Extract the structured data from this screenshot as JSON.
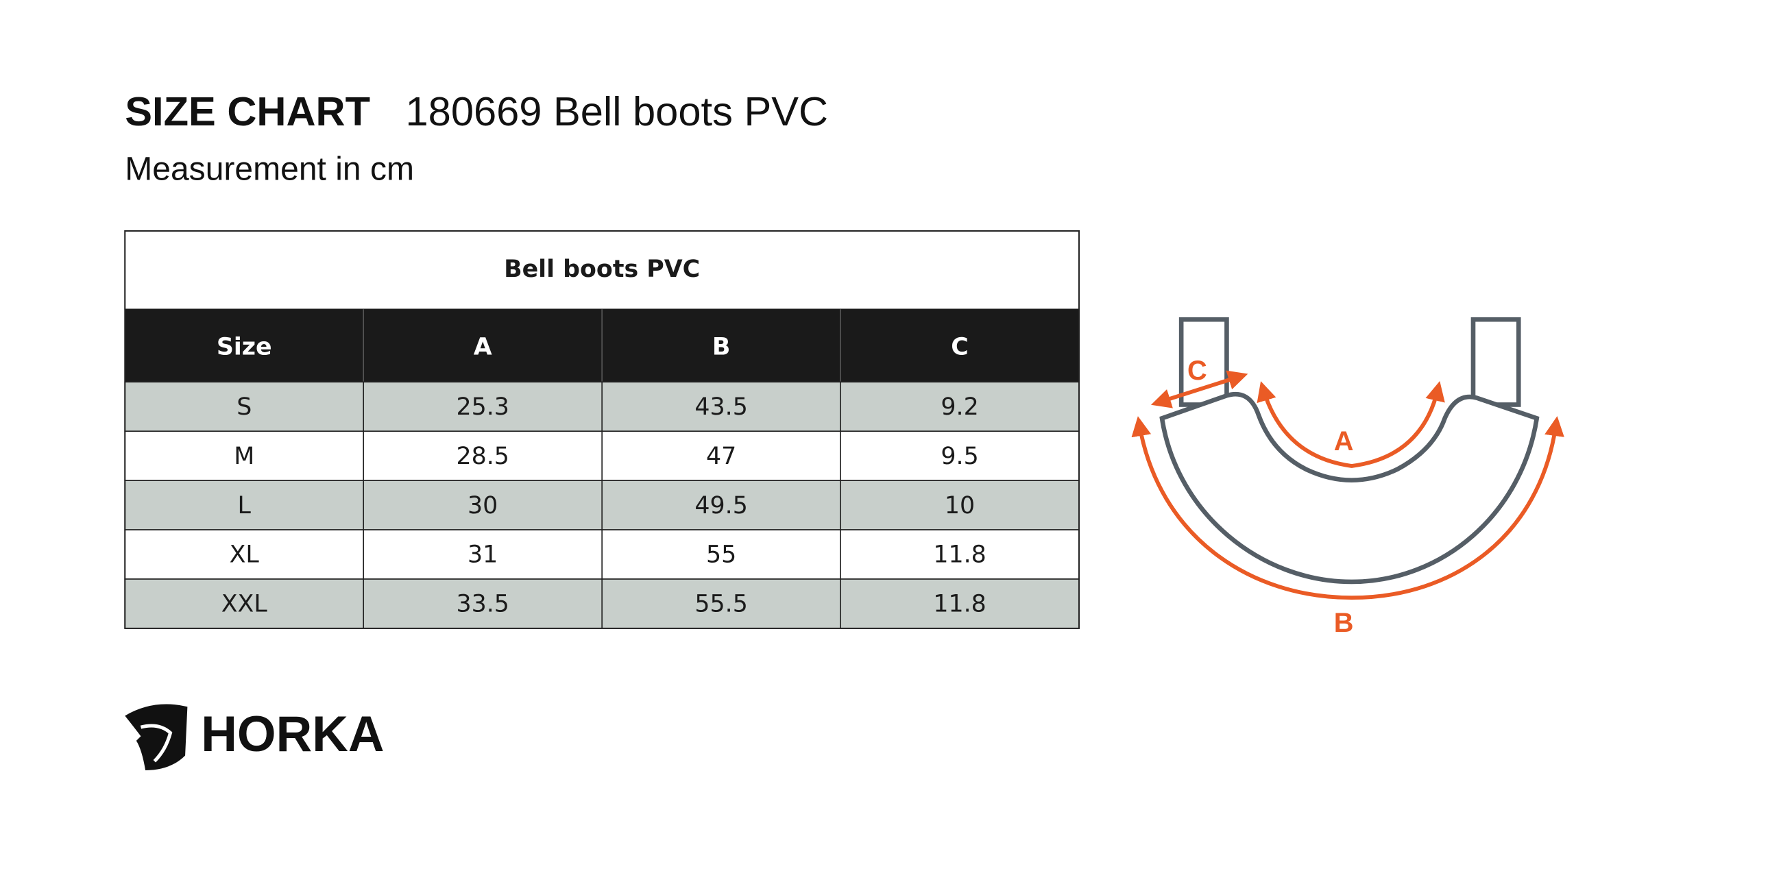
{
  "header": {
    "title": "SIZE CHART",
    "product": "180669 Bell boots PVC",
    "subtitle": "Measurement in cm"
  },
  "table": {
    "title": "Bell boots PVC",
    "columns": [
      "Size",
      "A",
      "B",
      "C"
    ],
    "rows": [
      [
        "S",
        "25.3",
        "43.5",
        "9.2"
      ],
      [
        "M",
        "28.5",
        "47",
        "9.5"
      ],
      [
        "L",
        "30",
        "49.5",
        "10"
      ],
      [
        "XL",
        "31",
        "55",
        "11.8"
      ],
      [
        "XXL",
        "33.5",
        "55.5",
        "11.8"
      ]
    ]
  },
  "diagram": {
    "labels": [
      "A",
      "B",
      "C"
    ]
  },
  "logo": {
    "text": "HORKA"
  }
}
